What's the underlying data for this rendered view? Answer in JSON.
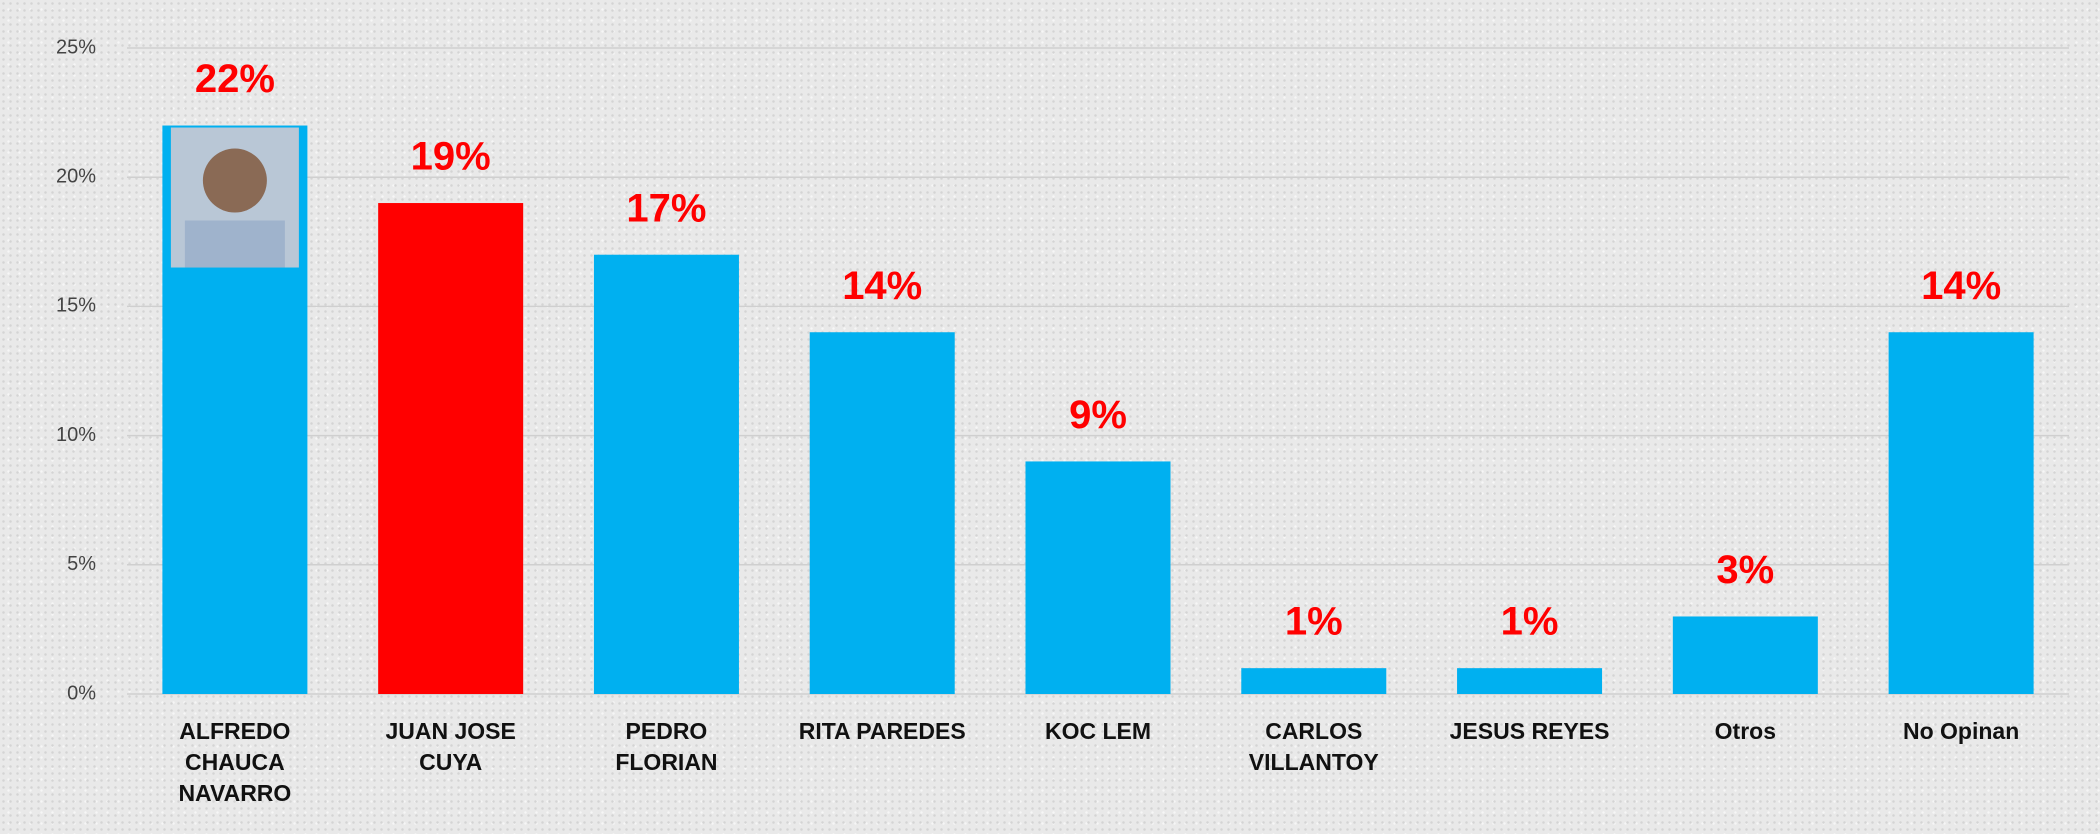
{
  "chart_data": {
    "type": "bar",
    "categories": [
      "ALFREDO\nCHAUCA\nNAVARRO",
      "JUAN JOSE\nCUYA",
      "PEDRO\nFLORIAN",
      "RITA PAREDES",
      "KOC LEM",
      "CARLOS\nVILLANTOY",
      "JESUS REYES",
      "Otros",
      "No Opinan"
    ],
    "values": [
      22,
      19,
      17,
      14,
      9,
      1,
      1,
      3,
      14
    ],
    "value_labels": [
      "22%",
      "19%",
      "17%",
      "14%",
      "9%",
      "1%",
      "1%",
      "3%",
      "14%"
    ],
    "colors": [
      "#00b0f0",
      "#ff0000",
      "#00b0f0",
      "#00b0f0",
      "#00b0f0",
      "#00b0f0",
      "#00b0f0",
      "#00b0f0",
      "#00b0f0"
    ],
    "ylim": [
      0,
      25
    ],
    "yticks": [
      {
        "value": 0,
        "label": "0%"
      },
      {
        "value": 5,
        "label": "5%"
      },
      {
        "value": 10,
        "label": "10%"
      },
      {
        "value": 15,
        "label": "15%"
      },
      {
        "value": 20,
        "label": "20%"
      },
      {
        "value": 25,
        "label": "25%"
      }
    ],
    "grid": true
  }
}
